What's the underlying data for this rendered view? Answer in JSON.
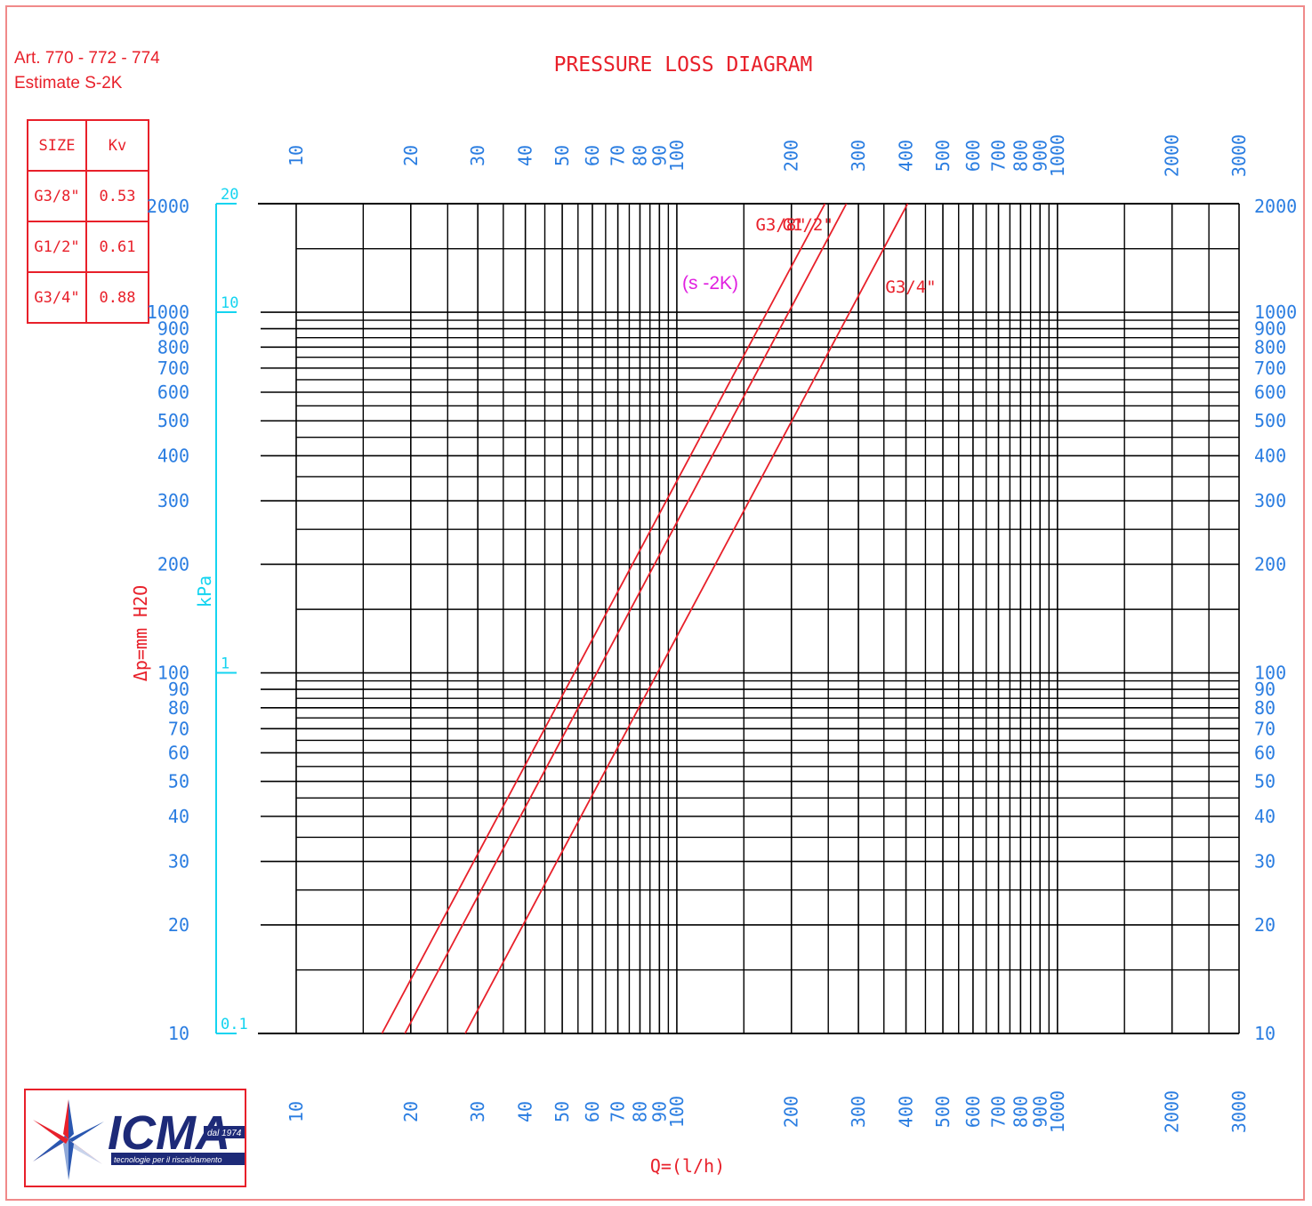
{
  "header": {
    "art_numbers": "Art. 770 - 772 - 774",
    "estimate": "Estimate S-2K"
  },
  "kv_table": {
    "headers": [
      "SIZE",
      "Kv"
    ],
    "rows": [
      {
        "size": "G3/8\"",
        "kv": "0.53"
      },
      {
        "size": "G1/2\"",
        "kv": "0.61"
      },
      {
        "size": "G3/4\"",
        "kv": "0.88"
      }
    ]
  },
  "logo": {
    "brand": "ICMA",
    "since": "dal 1974",
    "tagline": "tecnologie per il riscaldamento"
  },
  "colors": {
    "red": "#e8202a",
    "blue": "#2a7de1",
    "cyan": "#14d4f0",
    "magenta": "#e020e0"
  },
  "chart_data": {
    "type": "line",
    "title": "PRESSURE LOSS DIAGRAM",
    "subtitle": "(s -2K)",
    "xlabel": "Q=(l/h)",
    "ylabel": "Δp=mm H2O",
    "y2label": "kPa",
    "x_scale": "log",
    "y_scale": "log",
    "xlim": [
      10,
      3000
    ],
    "ylim": [
      10,
      2000
    ],
    "x_ticks": [
      10,
      20,
      30,
      40,
      50,
      60,
      70,
      80,
      90,
      100,
      200,
      300,
      400,
      500,
      600,
      700,
      800,
      900,
      1000,
      2000,
      3000
    ],
    "x_tick_labels": [
      "10",
      "20",
      "30",
      "40",
      "50",
      "60",
      "70",
      "80",
      "90",
      "100",
      "200",
      "300",
      "400",
      "500",
      "600",
      "700",
      "800",
      "900",
      "1000",
      "2000",
      "3000"
    ],
    "y_ticks": [
      10,
      20,
      30,
      40,
      50,
      60,
      70,
      80,
      90,
      100,
      200,
      300,
      400,
      500,
      600,
      700,
      800,
      900,
      1000,
      2000
    ],
    "y_tick_labels": [
      "10",
      "20",
      "30",
      "40",
      "50",
      "60",
      "70",
      "80",
      "90",
      "100",
      "200",
      "300",
      "400",
      "500",
      "600",
      "700",
      "800",
      "900",
      "1000",
      "2000"
    ],
    "kpa_ticks": [
      0.1,
      1,
      10,
      20
    ],
    "kpa_tick_labels": [
      "0.1",
      "1",
      "10",
      "20"
    ],
    "grid": true,
    "series": [
      {
        "name": "G3/8\"",
        "x": [
          16.8,
          245
        ],
        "y": [
          10,
          2000
        ]
      },
      {
        "name": "G1/2\"",
        "x": [
          19.3,
          279
        ],
        "y": [
          10,
          2000
        ]
      },
      {
        "name": "G3/4\"",
        "x": [
          27.8,
          404
        ],
        "y": [
          10,
          2000
        ]
      }
    ]
  }
}
